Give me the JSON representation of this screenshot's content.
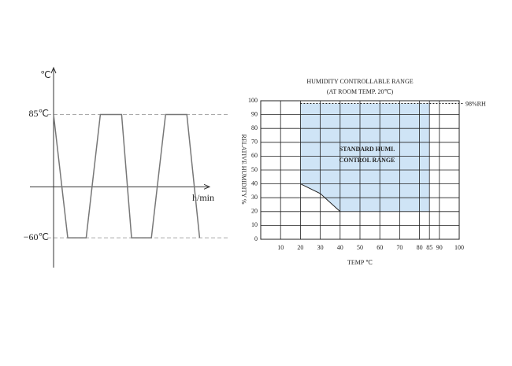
{
  "chart_data": [
    {
      "type": "line",
      "y_label": "℃",
      "x_label": "h/min",
      "x": [
        0,
        1,
        2.3,
        3.3,
        4.8,
        5.5,
        6.9,
        7.9,
        9.4,
        10.3
      ],
      "values": [
        85,
        -60,
        -60,
        85,
        85,
        -60,
        -60,
        85,
        85,
        -60
      ],
      "color": "#777777",
      "xlim": [
        0,
        11
      ],
      "ylim": [
        -95,
        140
      ],
      "yticks": [
        {
          "value": 85,
          "label": "85℃"
        },
        {
          "value": -60,
          "label": "−60℃"
        }
      ],
      "grid": true
    },
    {
      "type": "area",
      "title": "HUMIDITY CONTROLLABLE RANGE",
      "subtitle": "(AT ROOM TEMP. 20℃)",
      "x_label": "TEMP ℃",
      "y_label": "RELATIVE HUMIDITY %",
      "x": [
        20,
        20,
        85,
        85,
        40,
        30
      ],
      "values": [
        40,
        98,
        98,
        20,
        20,
        33
      ],
      "color": "#cfe4f6",
      "annotation": [
        "STANDARD HUMI.",
        "CONTROL RANGE"
      ],
      "reference_line": {
        "value": 98,
        "label": "98%RH"
      },
      "xlim": [
        0,
        100
      ],
      "ylim": [
        0,
        100
      ],
      "xticks": [
        10,
        20,
        30,
        40,
        50,
        60,
        70,
        80,
        85,
        90,
        100
      ],
      "yticks": [
        0,
        10,
        20,
        30,
        40,
        50,
        60,
        70,
        80,
        90,
        100
      ],
      "grid": true
    }
  ]
}
